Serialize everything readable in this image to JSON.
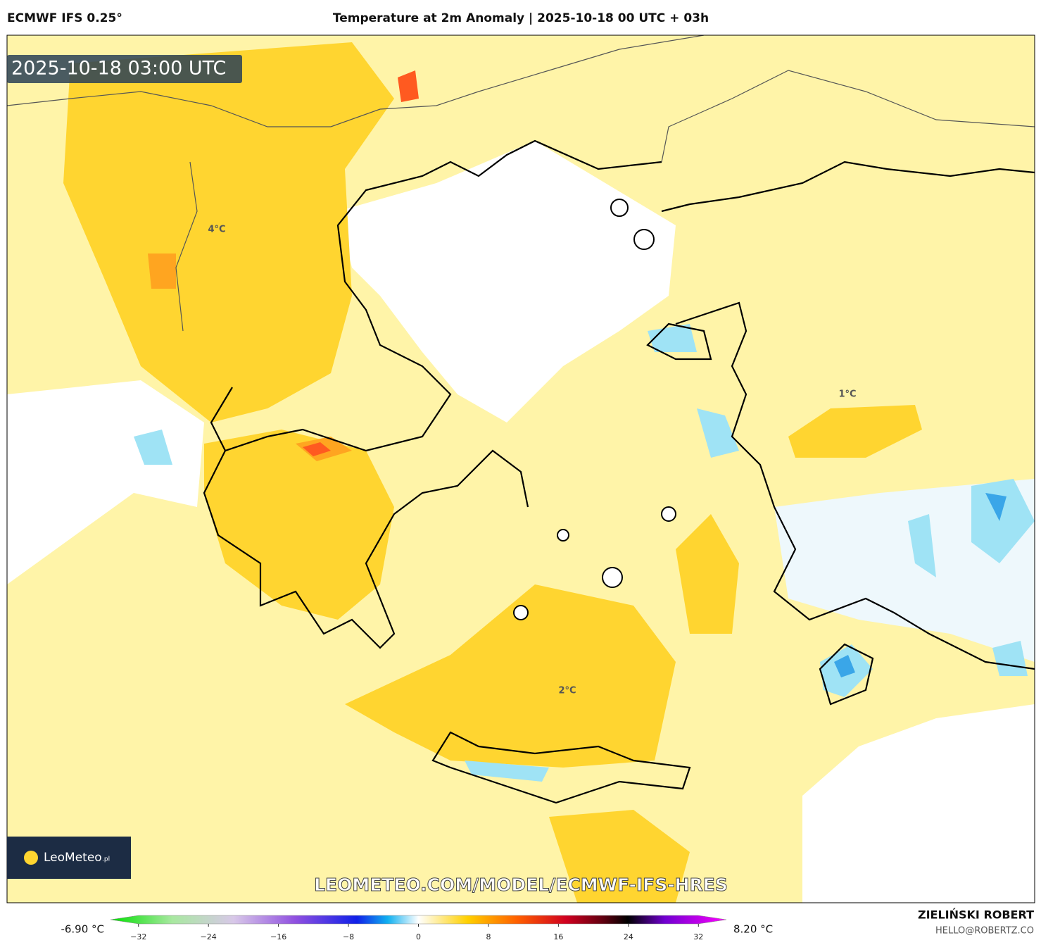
{
  "header": {
    "model": "ECMWF IFS 0.25°",
    "title": "Temperature at 2m Anomaly | 2025-10-18 00 UTC + 03h"
  },
  "map": {
    "timestamp": "2025-10-18 03:00 UTC",
    "labels": [
      "4°C",
      "1°C",
      "2°C"
    ],
    "logo": "LeoMeteo",
    "logo_suffix": ".pl",
    "watermark": "LEOMETEO.COM/MODEL/ECMWF-IFS-HRES"
  },
  "colorbar": {
    "min_label": "-6.90 °C",
    "max_label": "8.20 °C",
    "range": [
      -36,
      36
    ],
    "ticks": [
      {
        "value": -32,
        "label": "−32"
      },
      {
        "value": -24,
        "label": "−24"
      },
      {
        "value": -16,
        "label": "−16"
      },
      {
        "value": -8,
        "label": "−8"
      },
      0,
      8,
      16,
      24,
      32
    ]
  },
  "footer": {
    "author": "ZIELIŃSKI ROBERT",
    "email": "HELLO@ROBERTZ.CO"
  }
}
